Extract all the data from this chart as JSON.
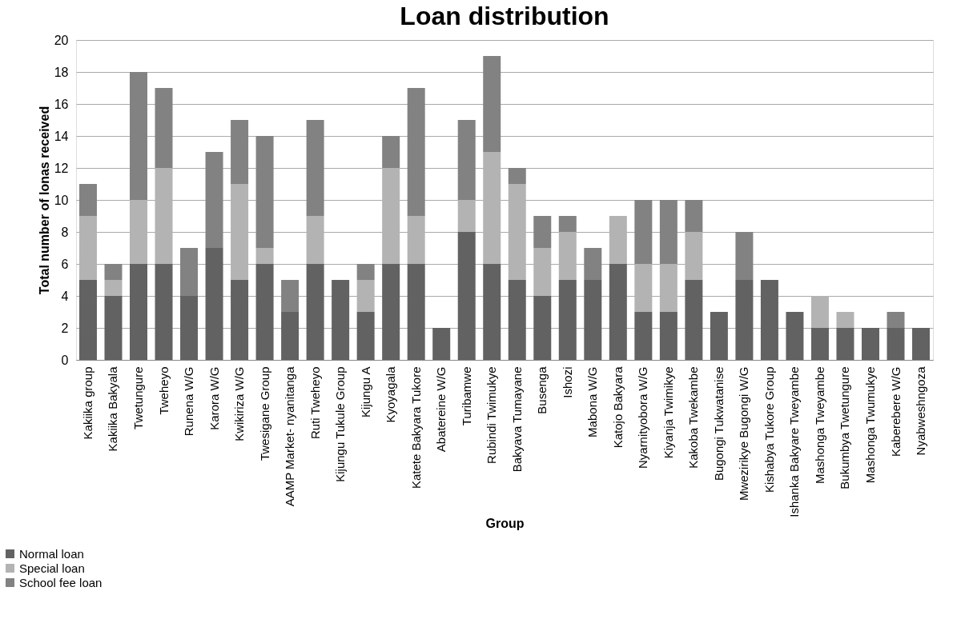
{
  "chart_data": {
    "type": "bar",
    "title": "Loan distribution",
    "xlabel": "Group",
    "ylabel": "Total number of lonas received",
    "stacked": true,
    "grid": "y",
    "legend": "bottom left",
    "categories": [
      "Kakiika group",
      "Kakiika Bakyala",
      "Twetungure",
      "Tweheyo",
      "Runena W/G",
      "Karora W/G",
      "Kwikiriza W/G",
      "Twesigane Group",
      "AAMP Market- nyanitanga",
      "Ruti Tweheyo",
      "Kijungu Tukule Group",
      "Kijungu A",
      "Kyoyagala",
      "Katete Bakyara Tukore",
      "Abatereine W/G",
      "Turibamwe",
      "Rubindi Twimukye",
      "Bakyava Tumayane",
      "Busenga",
      "Ishozi",
      "Mabona W/G",
      "Katojo Bakyara",
      "Nyarnityobora W/G",
      "Kiyanja Twimikye",
      "Kakoba Twekambe",
      "Bugongi Tukwatanise",
      "Mwezirikye Bugongi W/G",
      "Kishabya Tukore Group",
      "Ishanka Bakyare Tweyambe",
      "Mashonga Tweyambe",
      "Bukumbya Twetungure",
      "Mashonga Twumukye",
      "Kaberebere W/G",
      "Nyabweshngoza"
    ],
    "series": [
      {
        "name": "Normal loan",
        "color": "#626262",
        "values": [
          5,
          4,
          6,
          6,
          4,
          7,
          5,
          6,
          3,
          6,
          5,
          3,
          6,
          6,
          2,
          8,
          6,
          5,
          4,
          5,
          5,
          6,
          3,
          3,
          5,
          3,
          5,
          5,
          3,
          2,
          2,
          2,
          2,
          2
        ]
      },
      {
        "name": "Special loan",
        "color": "#b3b3b3",
        "values": [
          4,
          1,
          4,
          6,
          null,
          null,
          6,
          1,
          null,
          3,
          null,
          2,
          6,
          3,
          null,
          2,
          7,
          6,
          3,
          3,
          null,
          3,
          3,
          3,
          3,
          null,
          null,
          null,
          null,
          2,
          1,
          null,
          null,
          null
        ]
      },
      {
        "name": "School fee loan",
        "color": "#828282",
        "values": [
          2,
          1,
          8,
          5,
          3,
          6,
          4,
          7,
          2,
          6,
          null,
          1,
          2,
          8,
          null,
          5,
          6,
          1,
          2,
          1,
          2,
          null,
          4,
          4,
          2,
          null,
          3,
          null,
          null,
          null,
          null,
          null,
          1,
          null
        ]
      }
    ],
    "ylim": [
      0,
      20
    ],
    "yticks": [
      0,
      2,
      4,
      6,
      8,
      10,
      12,
      14,
      16,
      18,
      20
    ]
  }
}
